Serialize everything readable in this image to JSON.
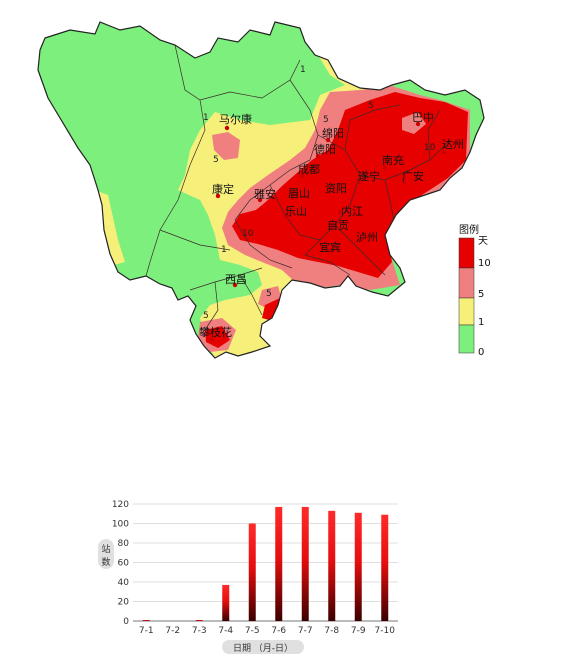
{
  "map": {
    "cities": [
      {
        "name": "马尔康"
      },
      {
        "name": "巴中"
      },
      {
        "name": "达州"
      },
      {
        "name": "绵阳"
      },
      {
        "name": "德阳"
      },
      {
        "name": "南充"
      },
      {
        "name": "广安"
      },
      {
        "name": "成都"
      },
      {
        "name": "遂宁"
      },
      {
        "name": "康定"
      },
      {
        "name": "雅安"
      },
      {
        "name": "眉山"
      },
      {
        "name": "资阳"
      },
      {
        "name": "乐山"
      },
      {
        "name": "内江"
      },
      {
        "name": "自贡"
      },
      {
        "name": "泸州"
      },
      {
        "name": "宜宾"
      },
      {
        "name": "西昌"
      },
      {
        "name": "攀枝花"
      }
    ],
    "isoline_labels": {
      "a": "1",
      "b": "5",
      "c": "10"
    },
    "legend": {
      "title": "图例",
      "unit": "天",
      "levels": [
        {
          "label": "10",
          "color": "#e60000"
        },
        {
          "label": "5",
          "color": "#f08080"
        },
        {
          "label": "1",
          "color": "#f6f07a"
        },
        {
          "label": "0",
          "color": "#7def7d"
        }
      ]
    }
  },
  "chart_data": {
    "type": "bar",
    "categories": [
      "7-1",
      "7-2",
      "7-3",
      "7-4",
      "7-5",
      "7-6",
      "7-7",
      "7-8",
      "7-9",
      "7-10"
    ],
    "values": [
      1,
      0,
      1,
      37,
      100,
      117,
      117,
      113,
      111,
      109
    ],
    "ylabel": "站数",
    "xlabel": "日期 （月-日）",
    "yticks": [
      "0",
      "20",
      "40",
      "60",
      "80",
      "100",
      "120"
    ],
    "ylim": [
      0,
      120
    ],
    "grid": true
  }
}
